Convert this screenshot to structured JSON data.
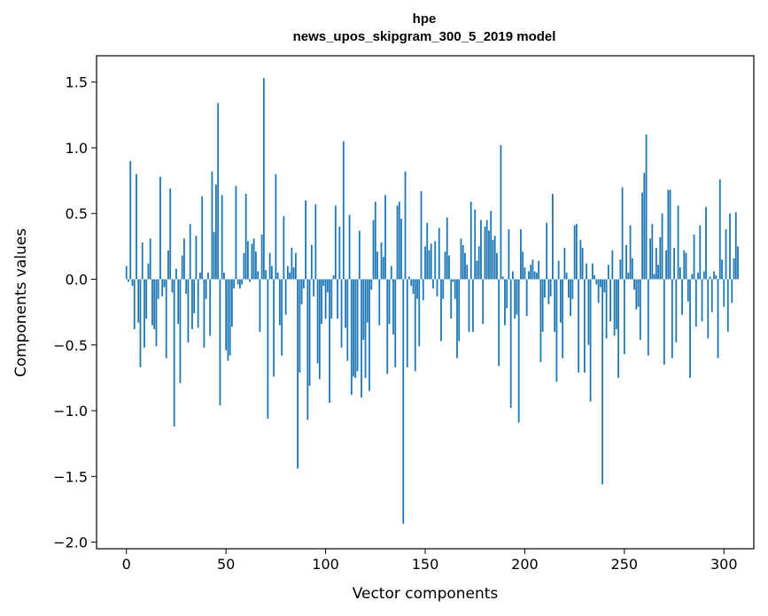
{
  "chart_data": {
    "type": "bar",
    "title": "hpe",
    "subtitle": "news_upos_skipgram_300_5_2019 model",
    "xlabel": "Vector components",
    "ylabel": "Components values",
    "xlim": [
      -15,
      315
    ],
    "ylim": [
      -2.05,
      1.7
    ],
    "xticks": [
      0,
      50,
      100,
      150,
      200,
      250,
      300
    ],
    "yticks": [
      -2.0,
      -1.5,
      -1.0,
      -0.5,
      0.0,
      0.5,
      1.0,
      1.5
    ],
    "ytick_labels": [
      "−2.0",
      "−1.5",
      "−1.0",
      "−0.5",
      "0.0",
      "0.5",
      "1.0",
      "1.5"
    ],
    "grid": false,
    "bar_color": "#1f77b4",
    "values": [
      0.1,
      -0.02,
      0.9,
      -0.05,
      -0.38,
      0.8,
      -0.33,
      -0.67,
      0.28,
      -0.52,
      -0.3,
      0.12,
      0.31,
      -0.35,
      -0.38,
      -0.51,
      -0.15,
      0.78,
      -0.13,
      -0.06,
      -0.6,
      0.22,
      0.69,
      -0.1,
      -1.12,
      0.08,
      -0.34,
      -0.79,
      0.18,
      0.31,
      -0.11,
      -0.48,
      0.42,
      -0.38,
      -0.26,
      0.33,
      -0.37,
      0.05,
      0.63,
      -0.52,
      -0.15,
      0.05,
      -0.43,
      0.82,
      0.36,
      0.72,
      1.34,
      -0.96,
      0.64,
      0.05,
      -0.54,
      -0.62,
      -0.58,
      -0.36,
      -0.07,
      0.71,
      -0.04,
      -0.07,
      -0.04,
      0.2,
      0.65,
      0.29,
      -0.02,
      0.27,
      0.31,
      0.21,
      0.06,
      -0.4,
      0.34,
      1.53,
      0.07,
      -1.06,
      0.2,
      0.1,
      -0.74,
      0.8,
      0.05,
      -0.35,
      -0.58,
      0.48,
      -0.27,
      0.1,
      0.05,
      0.24,
      0.09,
      0.2,
      -1.44,
      -0.71,
      -0.19,
      -0.07,
      0.6,
      -1.07,
      -0.81,
      0.26,
      -0.13,
      0.57,
      -0.64,
      -0.76,
      -0.34,
      -0.05,
      -0.3,
      -0.1,
      -0.94,
      -0.3,
      0.03,
      0.56,
      -0.3,
      0.4,
      -0.52,
      1.05,
      -0.37,
      -0.62,
      0.49,
      -0.88,
      -0.74,
      -0.75,
      -0.7,
      0.37,
      -0.9,
      -0.46,
      -0.75,
      -0.33,
      -0.85,
      -0.08,
      0.45,
      0.59,
      0.21,
      -0.35,
      0.28,
      0.17,
      0.64,
      -0.72,
      -0.34,
      0.1,
      -0.42,
      -0.67,
      0.56,
      0.59,
      0.46,
      -1.86,
      0.82,
      -0.67,
      0.02,
      -0.05,
      -0.11,
      -0.7,
      -0.15,
      -0.51,
      0.67,
      -0.16,
      0.25,
      0.43,
      0.22,
      0.27,
      -0.07,
      0.29,
      -0.13,
      0.39,
      -0.47,
      -0.15,
      0.21,
      0.47,
      0.18,
      -0.3,
      -0.02,
      -0.15,
      -0.6,
      -0.47,
      0.31,
      0.26,
      0.2,
      0.11,
      -0.4,
      0.59,
      -0.4,
      0.53,
      0.14,
      0.25,
      0.45,
      -0.34,
      0.4,
      0.45,
      0.37,
      0.52,
      0.3,
      0.33,
      0.2,
      -0.66,
      1.02,
      0.02,
      -0.35,
      -0.22,
      0.38,
      -0.98,
      0.06,
      -0.3,
      -0.27,
      -1.09,
      0.38,
      0.21,
      0.09,
      -0.28,
      0.06,
      0.11,
      0.15,
      0.06,
      0.05,
      0.14,
      -0.63,
      -0.4,
      -0.14,
      0.43,
      -0.19,
      -0.13,
      0.65,
      -0.4,
      -0.78,
      0.14,
      -0.33,
      -0.6,
      0.24,
      0.05,
      -0.14,
      -0.28,
      -0.15,
      0.41,
      0.42,
      -0.71,
      0.3,
      0.24,
      -0.71,
      0.12,
      -0.5,
      -0.93,
      0.12,
      0.03,
      -0.04,
      -0.18,
      -0.06,
      -1.56,
      -0.1,
      -0.45,
      0.11,
      -0.32,
      0.22,
      -0.43,
      -0.38,
      -0.75,
      0.15,
      0.7,
      -0.57,
      0.26,
      0.05,
      0.41,
      0.16,
      -0.08,
      -0.23,
      -0.21,
      -0.46,
      0.66,
      0.81,
      1.1,
      -0.58,
      0.31,
      0.42,
      0.04,
      0.24,
      0.11,
      0.32,
      0.5,
      -0.65,
      0.22,
      0.68,
      0.68,
      -0.6,
      0.24,
      -0.48,
      0.56,
      0.09,
      -0.27,
      0.22,
      0.2,
      -0.17,
      -0.75,
      0.04,
      0.34,
      -0.36,
      0.05,
      0.41,
      -0.32,
      0.06,
      0.55,
      -0.45,
      0.02,
      -0.25,
      0.06,
      0.03,
      -0.6,
      0.76,
      0.15,
      -0.21,
      0.38,
      -0.4,
      0.5,
      -0.18,
      0.16,
      0.51,
      0.25
    ]
  }
}
